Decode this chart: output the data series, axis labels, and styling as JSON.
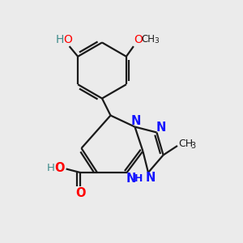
{
  "bg_color": "#ebebeb",
  "bond_color": "#1a1a1a",
  "n_color": "#1414ff",
  "o_color": "#ff0000",
  "teal_color": "#3d8b8b",
  "lw": 1.6,
  "figsize": [
    3.0,
    3.0
  ],
  "dpi": 100,
  "xlim": [
    0,
    10
  ],
  "ylim": [
    0,
    10
  ]
}
